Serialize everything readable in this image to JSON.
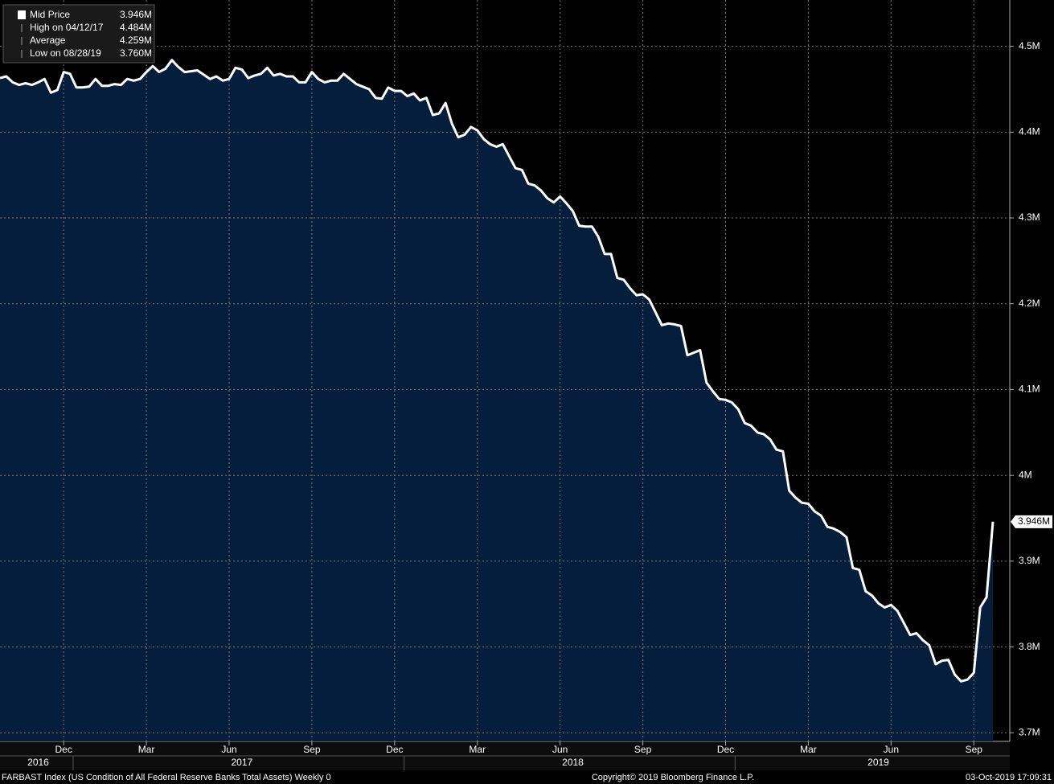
{
  "chart_data": {
    "type": "area",
    "legend": [
      {
        "label": "Mid Price",
        "value_label": "3.946M"
      },
      {
        "label": "High on 04/12/17",
        "value_label": "4.484M"
      },
      {
        "label": "Average",
        "value_label": "4.259M"
      },
      {
        "label": "Low on 08/28/19",
        "value_label": "3.760M"
      }
    ],
    "last_value_label": "3.946M",
    "footer_left": "FARBAST Index (US Condition of All Federal Reserve Banks Total Assets)  Weekly 0",
    "footer_center": "Copyright© 2019 Bloomberg Finance L.P.",
    "footer_right": "03-Oct-2019 17:09:31",
    "categories": [
      null,
      null,
      null,
      null,
      null,
      null,
      null,
      null,
      null,
      null,
      "Dec",
      null,
      null,
      null,
      null,
      null,
      null,
      null,
      null,
      null,
      null,
      null,
      null,
      "Mar",
      null,
      null,
      null,
      null,
      null,
      null,
      null,
      null,
      null,
      null,
      null,
      null,
      "Jun",
      null,
      null,
      null,
      null,
      null,
      null,
      null,
      null,
      null,
      null,
      null,
      null,
      "Sep",
      null,
      null,
      null,
      null,
      null,
      null,
      null,
      null,
      null,
      null,
      null,
      null,
      "Dec",
      null,
      null,
      null,
      null,
      null,
      null,
      null,
      null,
      null,
      null,
      null,
      null,
      "Mar",
      null,
      null,
      null,
      null,
      null,
      null,
      null,
      null,
      null,
      null,
      null,
      null,
      "Jun",
      null,
      null,
      null,
      null,
      null,
      null,
      null,
      null,
      null,
      null,
      null,
      null,
      "Sep",
      null,
      null,
      null,
      null,
      null,
      null,
      null,
      null,
      null,
      null,
      null,
      null,
      "Dec",
      null,
      null,
      null,
      null,
      null,
      null,
      null,
      null,
      null,
      null,
      null,
      null,
      "Mar",
      null,
      null,
      null,
      null,
      null,
      null,
      null,
      null,
      null,
      null,
      null,
      null,
      "Jun",
      null,
      null,
      null,
      null,
      null,
      null,
      null,
      null,
      null,
      null,
      null,
      null,
      "Sep",
      null,
      null,
      null
    ],
    "year_labels": [
      null,
      null,
      null,
      null,
      null,
      null,
      "2016",
      null,
      null,
      null,
      null,
      null,
      null,
      null,
      null,
      null,
      null,
      null,
      null,
      null,
      null,
      null,
      null,
      null,
      null,
      null,
      null,
      null,
      null,
      null,
      null,
      null,
      null,
      null,
      null,
      null,
      null,
      null,
      "2017",
      null,
      null,
      null,
      null,
      null,
      null,
      null,
      null,
      null,
      null,
      null,
      null,
      null,
      null,
      null,
      null,
      null,
      null,
      null,
      null,
      null,
      null,
      null,
      null,
      null,
      null,
      null,
      null,
      null,
      null,
      null,
      null,
      null,
      null,
      null,
      null,
      null,
      null,
      null,
      null,
      null,
      null,
      null,
      null,
      null,
      null,
      null,
      null,
      null,
      null,
      null,
      "2018",
      null,
      null,
      null,
      null,
      null,
      null,
      null,
      null,
      null,
      null,
      null,
      null,
      null,
      null,
      null,
      null,
      null,
      null,
      null,
      null,
      null,
      null,
      null,
      null,
      null,
      null,
      null,
      null,
      null,
      null,
      null,
      null,
      null,
      null,
      null,
      null,
      null,
      null,
      null,
      null,
      null,
      null,
      null,
      null,
      null,
      null,
      null,
      "2019",
      null,
      null,
      null,
      null,
      null,
      null,
      null,
      null,
      null,
      null,
      null,
      null,
      null,
      null,
      null,
      null,
      null,
      null
    ],
    "series": [
      {
        "name": "Mid Price",
        "color": "#ffffff",
        "fill": "#041e3b",
        "values": [
          4.463,
          4.465,
          4.458,
          4.455,
          4.457,
          4.455,
          4.458,
          4.462,
          4.446,
          4.449,
          4.47,
          4.468,
          4.452,
          4.452,
          4.453,
          4.462,
          4.454,
          4.454,
          4.456,
          4.455,
          4.462,
          4.46,
          4.462,
          4.47,
          4.477,
          4.47,
          4.474,
          4.484,
          4.476,
          4.47,
          4.471,
          4.472,
          4.467,
          4.462,
          4.465,
          4.46,
          4.462,
          4.475,
          4.473,
          4.463,
          4.466,
          4.468,
          4.475,
          4.466,
          4.468,
          4.465,
          4.465,
          4.458,
          4.458,
          4.47,
          4.462,
          4.458,
          4.46,
          4.46,
          4.468,
          4.462,
          4.456,
          4.453,
          4.45,
          4.44,
          4.439,
          4.452,
          4.448,
          4.448,
          4.442,
          4.445,
          4.437,
          4.44,
          4.42,
          4.422,
          4.434,
          4.41,
          4.394,
          4.397,
          4.406,
          4.402,
          4.392,
          4.386,
          4.383,
          4.386,
          4.372,
          4.358,
          4.356,
          4.34,
          4.338,
          4.332,
          4.323,
          4.318,
          4.325,
          4.317,
          4.308,
          4.291,
          4.29,
          4.29,
          4.278,
          4.258,
          4.258,
          4.23,
          4.228,
          4.218,
          4.21,
          4.211,
          4.205,
          4.19,
          4.175,
          4.177,
          4.176,
          4.174,
          4.14,
          4.143,
          4.146,
          4.108,
          4.098,
          4.089,
          4.088,
          4.085,
          4.077,
          4.061,
          4.058,
          4.05,
          4.048,
          4.042,
          4.03,
          4.028,
          3.982,
          3.974,
          3.968,
          3.967,
          3.958,
          3.953,
          3.94,
          3.938,
          3.934,
          3.928,
          3.892,
          3.89,
          3.865,
          3.86,
          3.851,
          3.846,
          3.849,
          3.842,
          3.828,
          3.814,
          3.816,
          3.808,
          3.802,
          3.78,
          3.784,
          3.785,
          3.768,
          3.76,
          3.762,
          3.77,
          3.846,
          3.858,
          3.946
        ]
      }
    ],
    "ylim": [
      3.69,
      4.554
    ],
    "yticks": [
      {
        "value": 3.7,
        "label": "3.7M"
      },
      {
        "value": 3.8,
        "label": "3.8M"
      },
      {
        "value": 3.9,
        "label": "3.9M"
      },
      {
        "value": 4,
        "label": "4M"
      },
      {
        "value": 4.1,
        "label": "4.1M"
      },
      {
        "value": 4.2,
        "label": "4.2M"
      },
      {
        "value": 4.3,
        "label": "4.3M"
      },
      {
        "value": 4.4,
        "label": "4.4M"
      },
      {
        "value": 4.5,
        "label": "4.5M"
      }
    ],
    "grid": true
  }
}
